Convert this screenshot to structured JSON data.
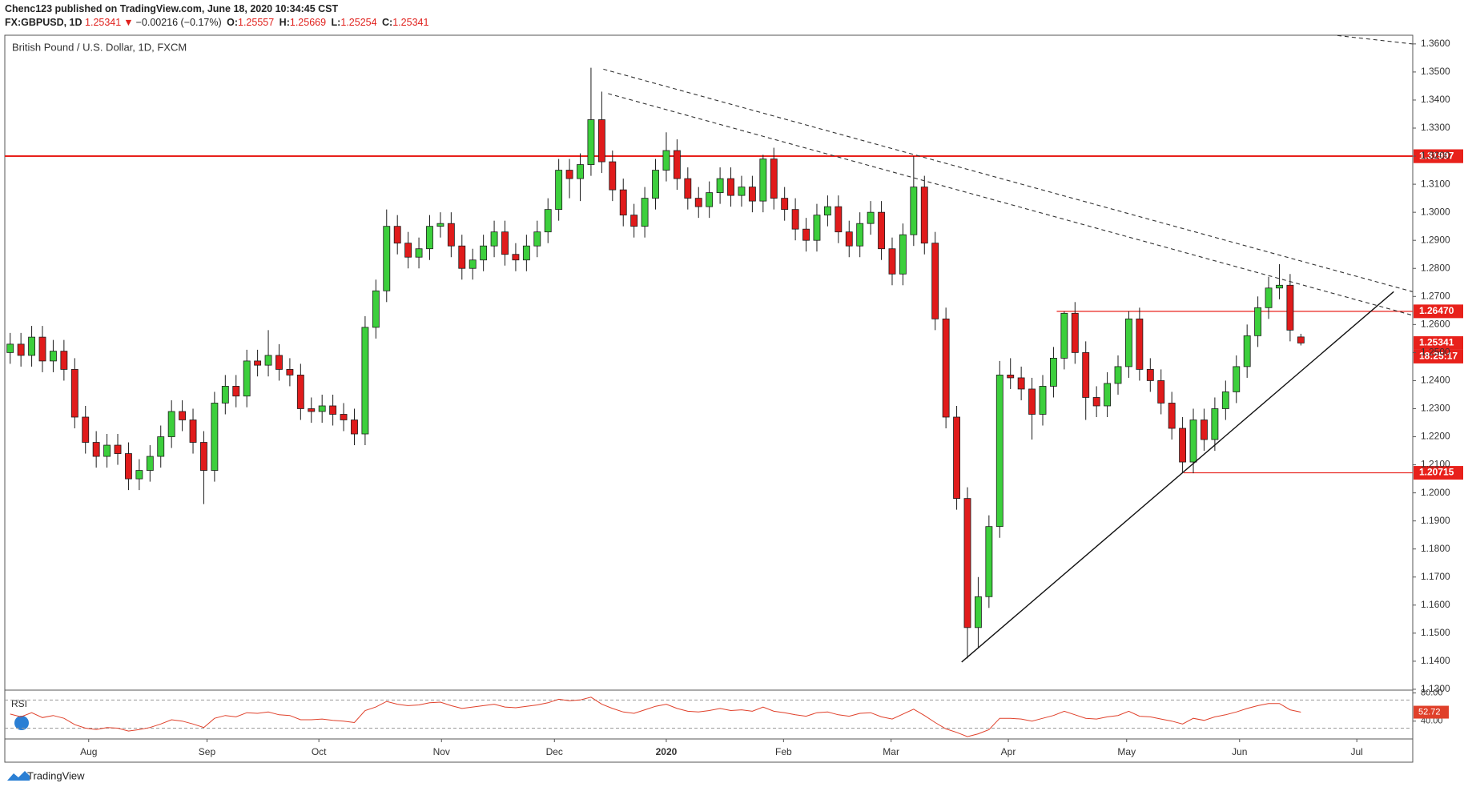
{
  "header": {
    "publisher": "Chenc123 published on TradingView.com, June 18, 2020 10:34:45 CST",
    "symbol": "FX:GBPUSD, 1D",
    "arrow": "▼",
    "change": "−0.00216 (−0.17%)",
    "o_label": "O:",
    "h_label": "H:",
    "l_label": "L:",
    "c_label": "C:"
  },
  "chart_data": {
    "type": "candlestick",
    "title": "British Pound / U.S. Dollar, 1D, FXCM",
    "open": [
      1.25,
      1.253,
      1.249,
      1.2555,
      1.247,
      1.2505,
      1.244,
      1.227,
      1.218,
      1.213,
      1.217,
      1.214,
      1.205,
      1.208,
      1.213,
      1.22,
      1.229,
      1.226,
      1.218,
      1.208,
      1.232,
      1.238,
      1.2345,
      1.247,
      1.2455,
      1.249,
      1.244,
      1.242,
      1.23,
      1.229,
      1.231,
      1.228,
      1.226,
      1.221,
      1.259,
      1.272,
      1.295,
      1.289,
      1.284,
      1.287,
      1.295,
      1.296,
      1.288,
      1.28,
      1.283,
      1.288,
      1.293,
      1.285,
      1.283,
      1.288,
      1.293,
      1.301,
      1.315,
      1.312,
      1.317,
      1.333,
      1.318,
      1.308,
      1.299,
      1.295,
      1.305,
      1.315,
      1.322,
      1.312,
      1.305,
      1.302,
      1.307,
      1.312,
      1.306,
      1.309,
      1.304,
      1.319,
      1.305,
      1.301,
      1.294,
      1.29,
      1.299,
      1.302,
      1.293,
      1.288,
      1.296,
      1.3,
      1.287,
      1.278,
      1.292,
      1.309,
      1.289,
      1.262,
      1.227,
      1.198,
      1.152,
      1.163,
      1.188,
      1.242,
      1.241,
      1.237,
      1.228,
      1.238,
      1.248,
      1.264,
      1.25,
      1.234,
      1.231,
      1.239,
      1.245,
      1.262,
      1.244,
      1.24,
      1.232,
      1.223,
      1.211,
      1.226,
      1.219,
      1.23,
      1.236,
      1.245,
      1.256,
      1.266,
      1.273,
      1.274,
      1.25557
    ],
    "high": [
      1.257,
      1.257,
      1.2595,
      1.2595,
      1.2545,
      1.2545,
      1.248,
      1.231,
      1.222,
      1.221,
      1.221,
      1.218,
      1.212,
      1.217,
      1.224,
      1.233,
      1.233,
      1.23,
      1.222,
      1.236,
      1.242,
      1.242,
      1.251,
      1.251,
      1.258,
      1.253,
      1.248,
      1.246,
      1.234,
      1.235,
      1.235,
      1.232,
      1.23,
      1.263,
      1.276,
      1.301,
      1.299,
      1.293,
      1.291,
      1.299,
      1.3,
      1.3,
      1.292,
      1.287,
      1.292,
      1.297,
      1.297,
      1.289,
      1.292,
      1.297,
      1.305,
      1.319,
      1.319,
      1.321,
      1.3515,
      1.343,
      1.322,
      1.312,
      1.303,
      1.309,
      1.319,
      1.3285,
      1.326,
      1.316,
      1.309,
      1.311,
      1.316,
      1.316,
      1.313,
      1.313,
      1.3205,
      1.323,
      1.309,
      1.305,
      1.298,
      1.303,
      1.306,
      1.306,
      1.297,
      1.3,
      1.304,
      1.304,
      1.291,
      1.296,
      1.32,
      1.313,
      1.293,
      1.266,
      1.231,
      1.202,
      1.17,
      1.192,
      1.247,
      1.248,
      1.245,
      1.241,
      1.242,
      1.252,
      1.2647,
      1.268,
      1.254,
      1.238,
      1.243,
      1.249,
      1.2647,
      1.266,
      1.248,
      1.244,
      1.236,
      1.227,
      1.23,
      1.23,
      1.234,
      1.24,
      1.249,
      1.26,
      1.27,
      1.277,
      1.2815,
      1.278,
      1.25669
    ],
    "low": [
      1.246,
      1.245,
      1.245,
      1.243,
      1.243,
      1.24,
      1.223,
      1.214,
      1.209,
      1.209,
      1.21,
      1.201,
      1.201,
      1.204,
      1.209,
      1.216,
      1.222,
      1.214,
      1.196,
      1.204,
      1.228,
      1.2305,
      1.2305,
      1.2415,
      1.2415,
      1.24,
      1.238,
      1.226,
      1.225,
      1.225,
      1.224,
      1.222,
      1.217,
      1.217,
      1.255,
      1.268,
      1.285,
      1.28,
      1.28,
      1.283,
      1.291,
      1.284,
      1.276,
      1.276,
      1.279,
      1.284,
      1.281,
      1.279,
      1.279,
      1.284,
      1.289,
      1.297,
      1.305,
      1.304,
      1.313,
      1.314,
      1.304,
      1.295,
      1.291,
      1.291,
      1.301,
      1.311,
      1.308,
      1.301,
      1.298,
      1.298,
      1.303,
      1.302,
      1.302,
      1.3,
      1.3,
      1.301,
      1.297,
      1.29,
      1.286,
      1.286,
      1.295,
      1.289,
      1.284,
      1.284,
      1.292,
      1.283,
      1.274,
      1.274,
      1.288,
      1.285,
      1.258,
      1.223,
      1.194,
      1.141,
      1.145,
      1.159,
      1.184,
      1.237,
      1.233,
      1.219,
      1.224,
      1.234,
      1.244,
      1.246,
      1.226,
      1.227,
      1.227,
      1.235,
      1.241,
      1.24,
      1.236,
      1.228,
      1.219,
      1.2072,
      1.207,
      1.215,
      1.215,
      1.226,
      1.232,
      1.241,
      1.252,
      1.262,
      1.269,
      1.254,
      1.25254
    ],
    "close": [
      1.253,
      1.249,
      1.2555,
      1.247,
      1.2505,
      1.244,
      1.227,
      1.218,
      1.213,
      1.217,
      1.214,
      1.205,
      1.208,
      1.213,
      1.22,
      1.229,
      1.226,
      1.218,
      1.208,
      1.232,
      1.238,
      1.2345,
      1.247,
      1.2455,
      1.249,
      1.244,
      1.242,
      1.23,
      1.229,
      1.231,
      1.228,
      1.226,
      1.221,
      1.259,
      1.272,
      1.295,
      1.289,
      1.284,
      1.287,
      1.295,
      1.296,
      1.288,
      1.28,
      1.283,
      1.288,
      1.293,
      1.285,
      1.283,
      1.288,
      1.293,
      1.301,
      1.315,
      1.312,
      1.317,
      1.333,
      1.318,
      1.308,
      1.299,
      1.295,
      1.305,
      1.315,
      1.322,
      1.312,
      1.305,
      1.302,
      1.307,
      1.312,
      1.306,
      1.309,
      1.304,
      1.319,
      1.305,
      1.301,
      1.294,
      1.29,
      1.299,
      1.302,
      1.293,
      1.288,
      1.296,
      1.3,
      1.287,
      1.278,
      1.292,
      1.309,
      1.289,
      1.262,
      1.227,
      1.198,
      1.152,
      1.163,
      1.188,
      1.242,
      1.241,
      1.237,
      1.228,
      1.238,
      1.248,
      1.264,
      1.25,
      1.234,
      1.231,
      1.239,
      1.245,
      1.262,
      1.244,
      1.24,
      1.232,
      1.223,
      1.211,
      1.226,
      1.219,
      1.23,
      1.236,
      1.245,
      1.256,
      1.266,
      1.273,
      1.274,
      1.258,
      1.25341
    ],
    "up_color": "#3ccf3c",
    "down_color": "#e01b1b",
    "border_color": "#1c1c1c",
    "xlim": [
      0,
      130.9
    ],
    "xticks": [
      {
        "value": 7.8,
        "label": "Aug"
      },
      {
        "value": 18.8,
        "label": "Sep"
      },
      {
        "value": 29.2,
        "label": "Oct"
      },
      {
        "value": 40.6,
        "label": "Nov"
      },
      {
        "value": 51.1,
        "label": "Dec"
      },
      {
        "value": 61.5,
        "label": "2020"
      },
      {
        "value": 72.4,
        "label": "Feb"
      },
      {
        "value": 82.4,
        "label": "Mar"
      },
      {
        "value": 93.3,
        "label": "Apr"
      },
      {
        "value": 104.3,
        "label": "May"
      },
      {
        "value": 114.8,
        "label": "Jun"
      },
      {
        "value": 125.7,
        "label": "Jul"
      }
    ],
    "ylim": [
      1.1297,
      1.3631
    ],
    "yticks": [
      {
        "value": 1.36,
        "label": "1.3600"
      },
      {
        "value": 1.35,
        "label": "1.3500"
      },
      {
        "value": 1.34,
        "label": "1.3400"
      },
      {
        "value": 1.33,
        "label": "1.3300"
      },
      {
        "value": 1.32,
        "label": "1.3200"
      },
      {
        "value": 1.31,
        "label": "1.3100"
      },
      {
        "value": 1.3,
        "label": "1.3000"
      },
      {
        "value": 1.29,
        "label": "1.2900"
      },
      {
        "value": 1.28,
        "label": "1.2800"
      },
      {
        "value": 1.27,
        "label": "1.2700"
      },
      {
        "value": 1.26,
        "label": "1.2600"
      },
      {
        "value": 1.25,
        "label": "1.2500"
      },
      {
        "value": 1.24,
        "label": "1.2400"
      },
      {
        "value": 1.23,
        "label": "1.2300"
      },
      {
        "value": 1.22,
        "label": "1.2200"
      },
      {
        "value": 1.21,
        "label": "1.2100"
      },
      {
        "value": 1.2,
        "label": "1.2000"
      },
      {
        "value": 1.19,
        "label": "1.1900"
      },
      {
        "value": 1.18,
        "label": "1.1800"
      },
      {
        "value": 1.17,
        "label": "1.1700"
      },
      {
        "value": 1.16,
        "label": "1.1600"
      },
      {
        "value": 1.15,
        "label": "1.1500"
      },
      {
        "value": 1.14,
        "label": "1.1400"
      },
      {
        "value": 1.13,
        "label": "1.1300"
      }
    ],
    "grid": false,
    "levels": [
      {
        "value": 1.32,
        "label": "1.32000",
        "start": 0,
        "width": 2
      },
      {
        "value": 1.31997,
        "label": "1.31997"
      },
      {
        "value": 1.2647,
        "label": "1.26470",
        "start": 97.8,
        "width": 1.2
      },
      {
        "value": 1.20715,
        "label": "1.20715",
        "start": 109.6,
        "width": 1.2
      }
    ],
    "level_color": "#e8211b",
    "countdown": "18:25:17",
    "trendlines": [
      {
        "start": [
          55.65,
          1.351
        ],
        "end": [
          130.87,
          1.2717
        ],
        "dashed": true
      },
      {
        "start": [
          56.09,
          1.3423
        ],
        "end": [
          130.87,
          1.2633
        ],
        "dashed": true
      },
      {
        "start": [
          123.9,
          1.363
        ],
        "end": [
          130.87,
          1.36
        ],
        "dashed": true
      },
      {
        "start": [
          88.96,
          1.1397
        ],
        "end": [
          129.13,
          1.2717
        ],
        "dashed": false
      }
    ],
    "indicator": {
      "type": "line",
      "name": "RSI",
      "color": "#e0402a",
      "values": [
        50,
        46,
        52,
        45,
        48,
        44,
        35,
        30,
        28,
        31,
        30,
        26,
        28,
        31,
        36,
        42,
        40,
        36,
        31,
        44,
        48,
        46,
        52,
        51,
        53,
        49,
        48,
        42,
        42,
        43,
        41,
        40,
        38,
        55,
        60,
        68,
        64,
        62,
        63,
        66,
        67,
        62,
        58,
        60,
        62,
        64,
        60,
        59,
        61,
        63,
        66,
        71,
        69,
        70,
        74,
        64,
        58,
        53,
        51,
        56,
        61,
        64,
        58,
        54,
        53,
        55,
        58,
        55,
        56,
        54,
        60,
        54,
        52,
        49,
        47,
        52,
        53,
        49,
        47,
        51,
        52,
        46,
        43,
        50,
        57,
        48,
        38,
        29,
        24,
        18,
        22,
        28,
        44,
        44,
        43,
        40,
        44,
        48,
        54,
        49,
        44,
        43,
        46,
        48,
        54,
        47,
        46,
        43,
        40,
        36,
        44,
        41,
        46,
        49,
        53,
        58,
        62,
        65,
        65,
        56,
        52.72
      ],
      "ylim": [
        14.7,
        84
      ],
      "yticks": [
        {
          "value": 80,
          "label": "80.00"
        },
        {
          "value": 40,
          "label": "40.00"
        }
      ],
      "bands": [
        30,
        70
      ]
    }
  },
  "footer": {
    "brand": "TradingView"
  }
}
